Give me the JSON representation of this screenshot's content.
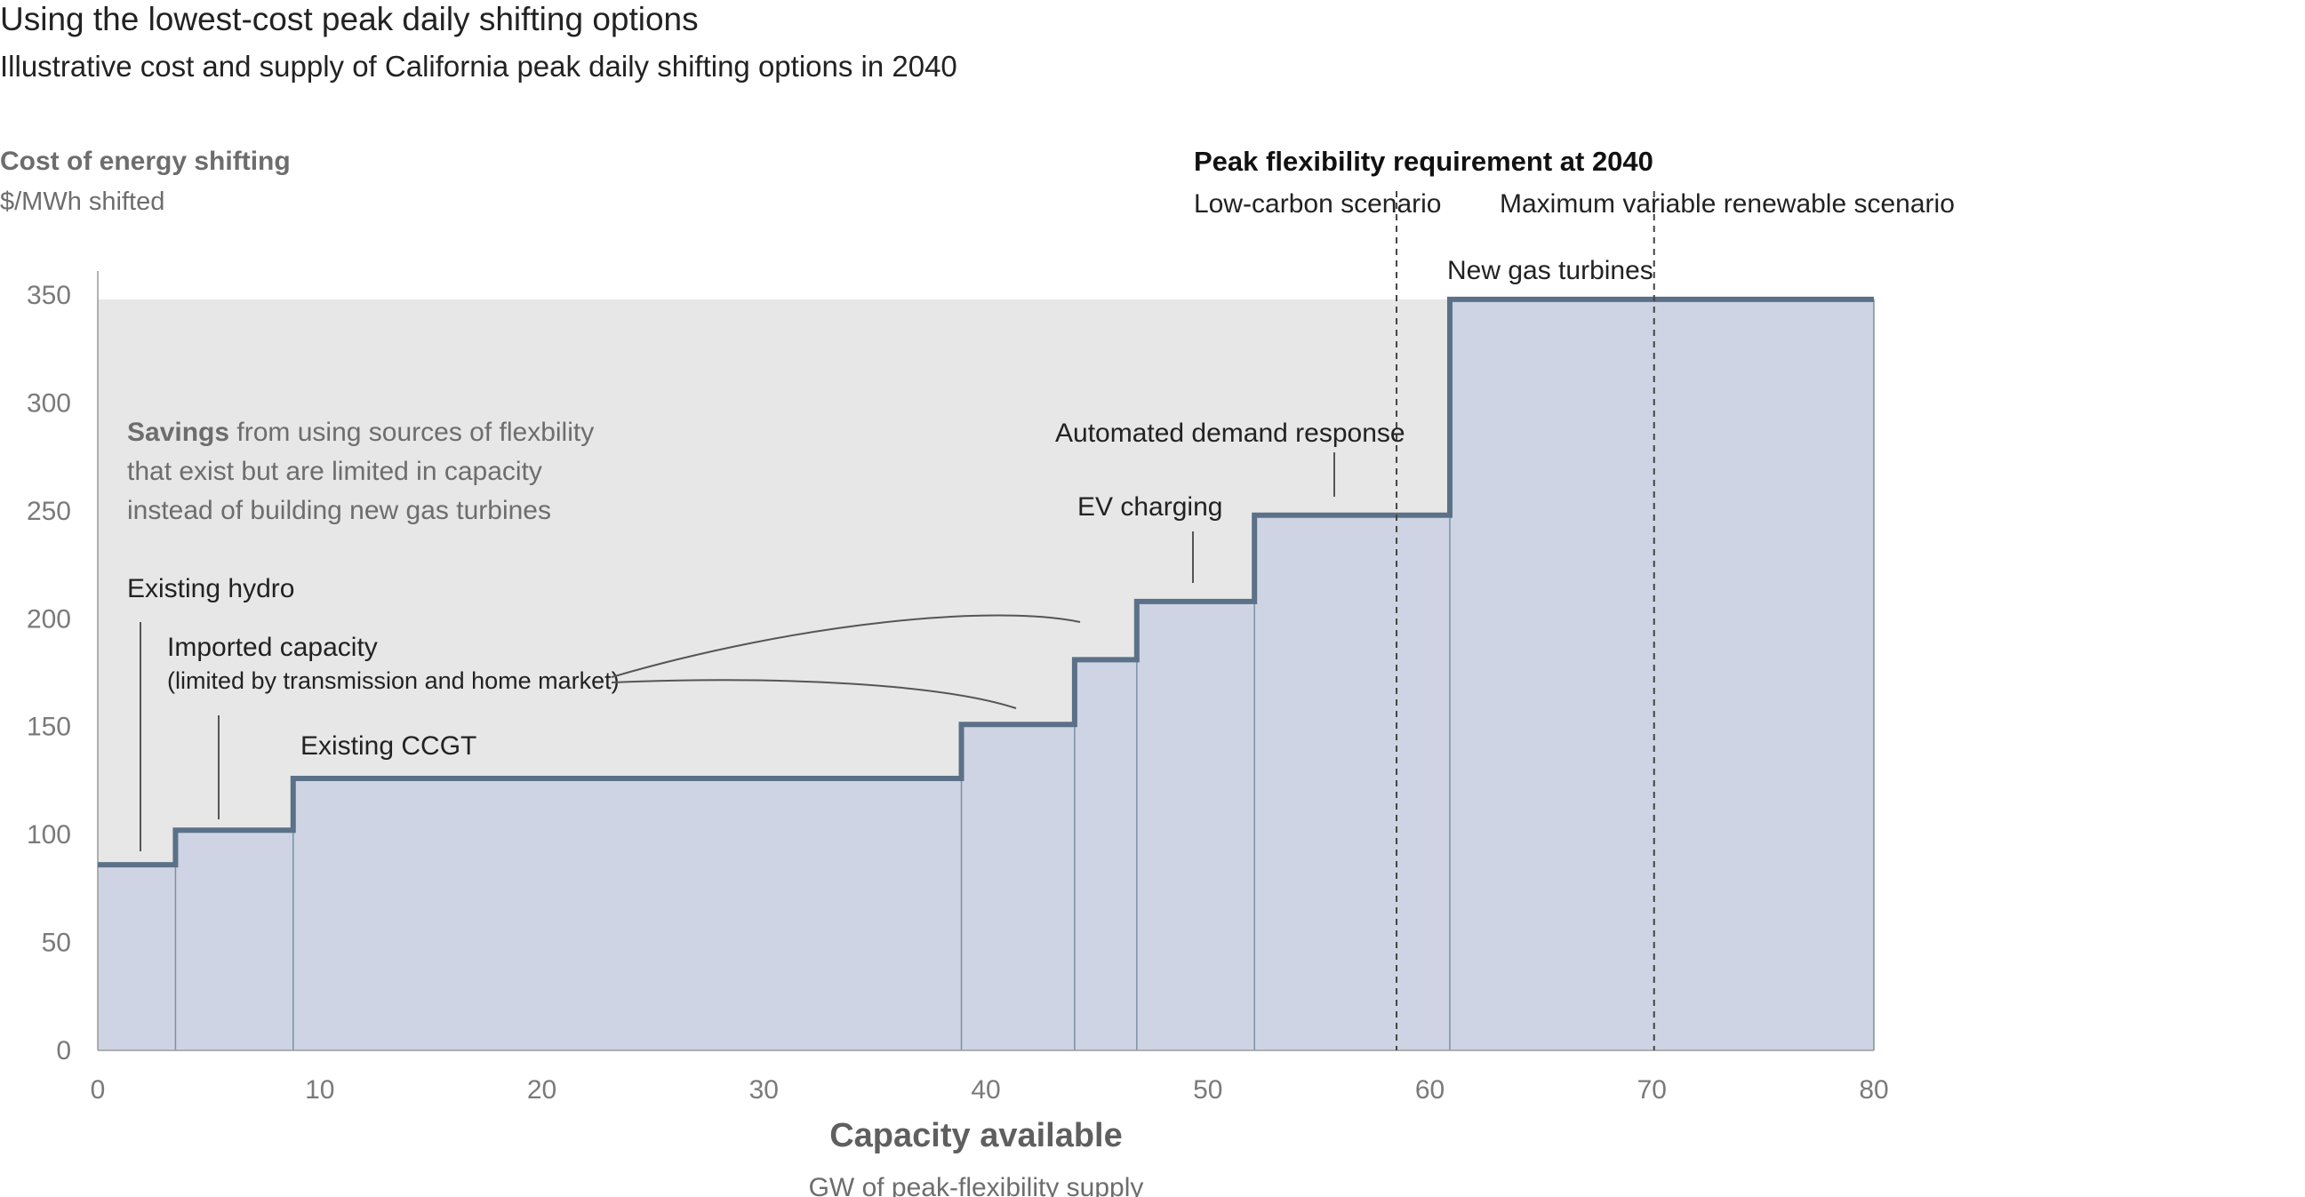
{
  "title": "Using the lowest-cost peak daily shifting options",
  "subtitle": "Illustrative cost and supply of California peak daily shifting options in 2040",
  "chart_data": {
    "type": "area",
    "style": "step supply curve",
    "y_axis": {
      "label": "Cost of energy shifting",
      "unit": "$/MWh shifted",
      "ylim": [
        0,
        350
      ],
      "ticks": [
        "0",
        "50",
        "100",
        "150",
        "200",
        "250",
        "300",
        "350"
      ]
    },
    "x_axis": {
      "label": "Capacity available",
      "unit": "GW of peak-flexibility supply",
      "xlim": [
        0,
        80
      ],
      "ticks": [
        "0",
        "10",
        "20",
        "30",
        "40",
        "50",
        "60",
        "70",
        "80"
      ]
    },
    "steps": [
      {
        "x0": 0,
        "x1": 3.5,
        "cost": 86
      },
      {
        "x0": 3.5,
        "x1": 8.8,
        "cost": 102
      },
      {
        "x0": 8.8,
        "x1": 38.9,
        "cost": 126
      },
      {
        "x0": 38.9,
        "x1": 44.0,
        "cost": 151
      },
      {
        "x0": 44.0,
        "x1": 46.8,
        "cost": 181
      },
      {
        "x0": 46.8,
        "x1": 52.1,
        "cost": 208
      },
      {
        "x0": 52.1,
        "x1": 60.9,
        "cost": 248
      },
      {
        "x0": 60.9,
        "x1": 80,
        "cost": 348
      }
    ],
    "savings_area_cost": 348,
    "requirement_lines": [
      58.5,
      70.1
    ],
    "colors": {
      "fill": "#ced4e3",
      "line": "#5b7188",
      "savings": "#e7e7e7",
      "divider": "#7d90a6"
    }
  },
  "annotations": {
    "existing_hydro": "Existing hydro",
    "imported_capacity": "Imported capacity",
    "imported_capacity_note": "(limited by transmission and home market)",
    "existing_ccgt": "Existing CCGT",
    "ev_charging": "EV charging",
    "automated_demand_response": "Automated demand response",
    "new_gas_turbines": "New gas turbines",
    "savings_bold": "Savings",
    "savings_line1": " from using sources of flexbility",
    "savings_line2": "that exist but are limited in capacity",
    "savings_line3": "instead of building new gas turbines"
  },
  "requirement": {
    "title": "Peak flexibility requirement at 2040",
    "low_carbon": "Low-carbon scenario",
    "max_renewable": "Maximum variable renewable scenario"
  }
}
